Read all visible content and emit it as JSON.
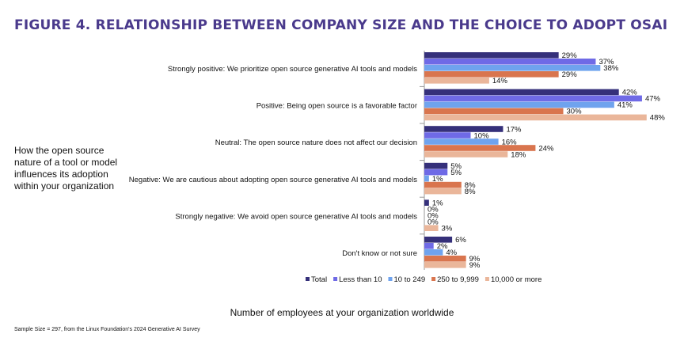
{
  "title": "FIGURE 4. RELATIONSHIP BETWEEN COMPANY SIZE AND THE CHOICE TO ADOPT OSAI",
  "y_caption": "How the open source nature of a tool or model influences its adoption within your organization",
  "x_caption": "Number of employees at your organization worldwide",
  "note": "Sample Size = 297, from the Linux Foundation's 2024 Generative AI Survey",
  "chart_data": {
    "type": "bar",
    "orientation": "horizontal",
    "categories": [
      "Strongly positive: We prioritize open source generative AI tools and models",
      "Positive: Being open source is a favorable factor",
      "Neutral: The open source nature does not affect our decision",
      "Negative: We are cautious about adopting open source generative AI tools and models",
      "Strongly negative: We avoid open source generative AI tools and models",
      "Don't know or not sure"
    ],
    "series": [
      {
        "name": "Total",
        "color": "#35307a",
        "values": [
          29,
          42,
          17,
          5,
          1,
          6
        ]
      },
      {
        "name": "Less than 10",
        "color": "#6f6ae6",
        "values": [
          37,
          47,
          10,
          5,
          0,
          2
        ]
      },
      {
        "name": "10 to 249",
        "color": "#6fa3ee",
        "values": [
          38,
          41,
          16,
          1,
          0,
          4
        ]
      },
      {
        "name": "250 to 9,999",
        "color": "#d9754e",
        "values": [
          29,
          30,
          24,
          8,
          0,
          9
        ]
      },
      {
        "name": "10,000 or more",
        "color": "#eab69a",
        "values": [
          14,
          48,
          18,
          8,
          3,
          9
        ]
      }
    ],
    "value_suffix": "%",
    "xlim": [
      0,
      50
    ],
    "legend_position": "bottom"
  }
}
